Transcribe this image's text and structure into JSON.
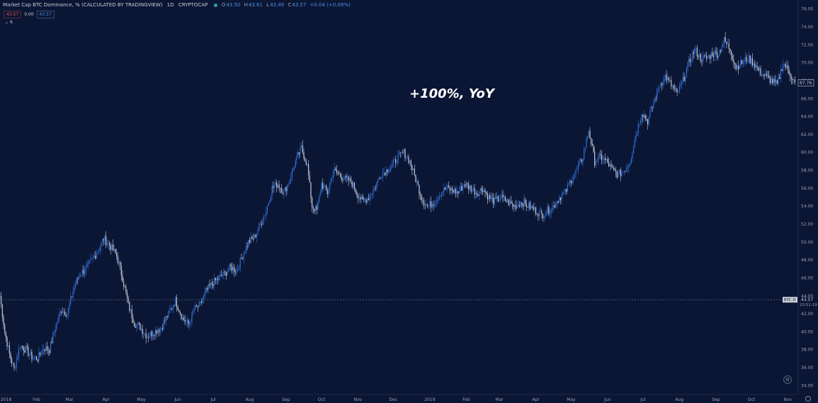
{
  "header": {
    "symbol_title": "Market Cap BTC Dominance, % (CALCULATED BY TRADINGVIEW)",
    "interval": "1D",
    "exchange": "CRYPTOCAP",
    "ohlc": [
      {
        "label": "O",
        "value": "43.50"
      },
      {
        "label": "H",
        "value": "43.61"
      },
      {
        "label": "L",
        "value": "43.49"
      },
      {
        "label": "C",
        "value": "43.57"
      }
    ],
    "change": "+0.04 (+0.09%)",
    "bid": "43.57",
    "spread": "0.00",
    "ask": "43.57",
    "indicators_toggle": "6"
  },
  "annotation": "+100%, YoY",
  "price_axis": {
    "current_price_label": "67.76",
    "crosshair_symbol": "BTC.D",
    "crosshair_price": "43.57",
    "countdown": "23:51:19"
  },
  "colors": {
    "background": "#0b1634",
    "up": "#2f6fd6",
    "down": "#c9ced8",
    "grid_text": "#9aa0ad"
  },
  "chart_data": {
    "type": "candlestick",
    "title": "",
    "xlabel": "",
    "ylabel": "",
    "ylim": [
      33,
      77
    ],
    "y_ticks": [
      "34.00",
      "36.00",
      "38.00",
      "40.00",
      "42.00",
      "44.00",
      "46.00",
      "48.00",
      "50.00",
      "52.00",
      "54.00",
      "56.00",
      "58.00",
      "60.00",
      "62.00",
      "64.00",
      "66.00",
      "68.00",
      "70.00",
      "72.00",
      "74.00",
      "76.00"
    ],
    "x_ticks": [
      "2018",
      "Feb",
      "Mar",
      "Apr",
      "May",
      "Jun",
      "Jul",
      "Aug",
      "Sep",
      "Oct",
      "Nov",
      "Dec",
      "2019",
      "Feb",
      "Mar",
      "Apr",
      "May",
      "Jun",
      "Jul",
      "Aug",
      "Sep",
      "Oct",
      "Nov"
    ],
    "start_date": "2018-01-01",
    "end_date": "2019-11-08",
    "crosshair_level": 43.57,
    "series": [
      {
        "values": [
          [
            "2018-01-01",
            44.0
          ],
          [
            "2018-01-05",
            40.0
          ],
          [
            "2018-01-09",
            37.5
          ],
          [
            "2018-01-13",
            35.8
          ],
          [
            "2018-01-18",
            38.5
          ],
          [
            "2018-01-23",
            38.0
          ],
          [
            "2018-01-28",
            37.2
          ],
          [
            "2018-02-02",
            37.0
          ],
          [
            "2018-02-07",
            38.2
          ],
          [
            "2018-02-12",
            38.0
          ],
          [
            "2018-02-17",
            40.5
          ],
          [
            "2018-02-22",
            42.5
          ],
          [
            "2018-02-27",
            42.0
          ],
          [
            "2018-03-05",
            45.0
          ],
          [
            "2018-03-10",
            46.5
          ],
          [
            "2018-03-15",
            47.0
          ],
          [
            "2018-03-20",
            48.0
          ],
          [
            "2018-03-25",
            49.0
          ],
          [
            "2018-03-30",
            50.4
          ],
          [
            "2018-04-05",
            49.5
          ],
          [
            "2018-04-10",
            48.5
          ],
          [
            "2018-04-15",
            46.0
          ],
          [
            "2018-04-20",
            43.0
          ],
          [
            "2018-04-25",
            41.0
          ],
          [
            "2018-04-30",
            40.5
          ],
          [
            "2018-05-06",
            39.5
          ],
          [
            "2018-05-12",
            40.0
          ],
          [
            "2018-05-18",
            40.5
          ],
          [
            "2018-05-24",
            42.0
          ],
          [
            "2018-05-30",
            43.5
          ],
          [
            "2018-06-05",
            41.5
          ],
          [
            "2018-06-10",
            40.8
          ],
          [
            "2018-06-15",
            42.5
          ],
          [
            "2018-06-20",
            43.0
          ],
          [
            "2018-06-25",
            44.5
          ],
          [
            "2018-07-01",
            45.5
          ],
          [
            "2018-07-06",
            46.0
          ],
          [
            "2018-07-11",
            46.5
          ],
          [
            "2018-07-16",
            47.2
          ],
          [
            "2018-07-21",
            46.8
          ],
          [
            "2018-07-26",
            48.5
          ],
          [
            "2018-07-31",
            50.0
          ],
          [
            "2018-08-05",
            50.5
          ],
          [
            "2018-08-10",
            52.0
          ],
          [
            "2018-08-15",
            53.5
          ],
          [
            "2018-08-20",
            56.0
          ],
          [
            "2018-08-25",
            56.5
          ],
          [
            "2018-08-30",
            55.5
          ],
          [
            "2018-09-04",
            57.0
          ],
          [
            "2018-09-09",
            59.0
          ],
          [
            "2018-09-14",
            60.5
          ],
          [
            "2018-09-19",
            58.5
          ],
          [
            "2018-09-23",
            54.0
          ],
          [
            "2018-09-27",
            53.5
          ],
          [
            "2018-10-01",
            56.5
          ],
          [
            "2018-10-06",
            55.5
          ],
          [
            "2018-10-11",
            58.0
          ],
          [
            "2018-10-16",
            57.5
          ],
          [
            "2018-10-21",
            57.0
          ],
          [
            "2018-10-26",
            56.8
          ],
          [
            "2018-10-31",
            55.5
          ],
          [
            "2018-11-05",
            54.5
          ],
          [
            "2018-11-10",
            55.0
          ],
          [
            "2018-11-15",
            56.0
          ],
          [
            "2018-11-20",
            57.5
          ],
          [
            "2018-11-25",
            58.0
          ],
          [
            "2018-11-30",
            58.5
          ],
          [
            "2018-12-05",
            59.5
          ],
          [
            "2018-12-10",
            60.0
          ],
          [
            "2018-12-15",
            59.0
          ],
          [
            "2018-12-20",
            57.0
          ],
          [
            "2018-12-25",
            55.0
          ],
          [
            "2018-12-30",
            54.0
          ],
          [
            "2019-01-05",
            54.5
          ],
          [
            "2019-01-10",
            55.5
          ],
          [
            "2019-01-15",
            56.0
          ],
          [
            "2019-01-20",
            55.8
          ],
          [
            "2019-01-25",
            55.5
          ],
          [
            "2019-01-30",
            56.5
          ],
          [
            "2019-02-05",
            56.0
          ],
          [
            "2019-02-10",
            55.5
          ],
          [
            "2019-02-15",
            56.0
          ],
          [
            "2019-02-20",
            55.0
          ],
          [
            "2019-02-25",
            54.5
          ],
          [
            "2019-03-02",
            55.0
          ],
          [
            "2019-03-08",
            54.5
          ],
          [
            "2019-03-14",
            54.0
          ],
          [
            "2019-03-20",
            54.5
          ],
          [
            "2019-03-26",
            54.0
          ],
          [
            "2019-04-01",
            53.5
          ],
          [
            "2019-04-06",
            53.0
          ],
          [
            "2019-04-11",
            53.5
          ],
          [
            "2019-04-16",
            54.0
          ],
          [
            "2019-04-21",
            55.0
          ],
          [
            "2019-04-26",
            55.5
          ],
          [
            "2019-05-01",
            57.0
          ],
          [
            "2019-05-06",
            58.0
          ],
          [
            "2019-05-11",
            59.5
          ],
          [
            "2019-05-16",
            62.5
          ],
          [
            "2019-05-21",
            59.0
          ],
          [
            "2019-05-26",
            59.5
          ],
          [
            "2019-05-31",
            59.0
          ],
          [
            "2019-06-05",
            58.0
          ],
          [
            "2019-06-10",
            57.5
          ],
          [
            "2019-06-15",
            58.0
          ],
          [
            "2019-06-20",
            59.0
          ],
          [
            "2019-06-25",
            62.0
          ],
          [
            "2019-06-30",
            64.5
          ],
          [
            "2019-07-05",
            63.5
          ],
          [
            "2019-07-10",
            65.5
          ],
          [
            "2019-07-15",
            67.5
          ],
          [
            "2019-07-20",
            68.5
          ],
          [
            "2019-07-25",
            67.5
          ],
          [
            "2019-07-30",
            66.5
          ],
          [
            "2019-08-04",
            68.0
          ],
          [
            "2019-08-09",
            70.0
          ],
          [
            "2019-08-14",
            71.5
          ],
          [
            "2019-08-19",
            70.5
          ],
          [
            "2019-08-24",
            70.5
          ],
          [
            "2019-08-29",
            71.0
          ],
          [
            "2019-09-03",
            71.0
          ],
          [
            "2019-09-08",
            72.5
          ],
          [
            "2019-09-13",
            71.5
          ],
          [
            "2019-09-18",
            69.5
          ],
          [
            "2019-09-23",
            70.0
          ],
          [
            "2019-09-28",
            70.5
          ],
          [
            "2019-10-03",
            70.0
          ],
          [
            "2019-10-08",
            69.0
          ],
          [
            "2019-10-13",
            68.5
          ],
          [
            "2019-10-18",
            68.0
          ],
          [
            "2019-10-23",
            67.5
          ],
          [
            "2019-10-28",
            70.0
          ],
          [
            "2019-11-02",
            69.0
          ],
          [
            "2019-11-07",
            67.76
          ]
        ]
      }
    ]
  }
}
